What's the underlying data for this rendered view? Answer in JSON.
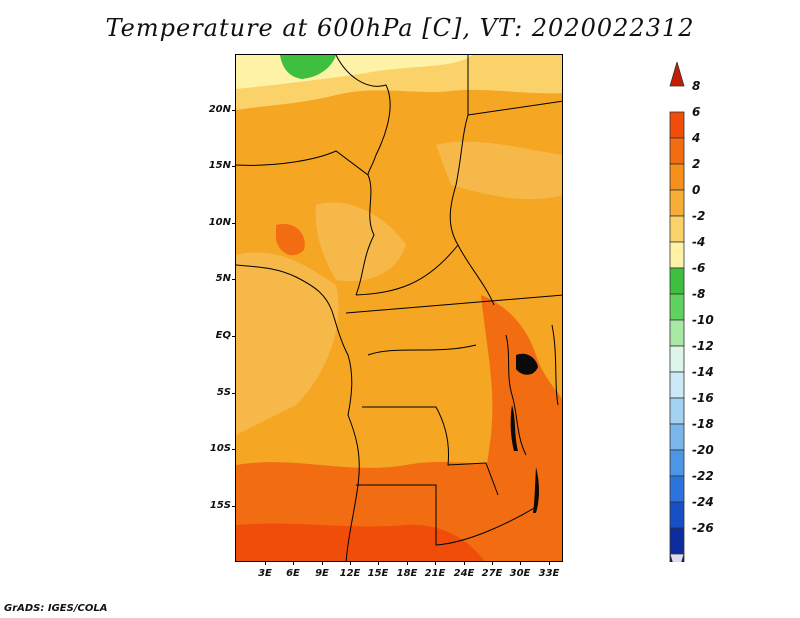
{
  "title": "Temperature at 600hPa [C], VT: 2020022312",
  "footer": "GrADS: IGES/COLA",
  "map": {
    "lon_range": [
      0,
      34.5
    ],
    "lat_range": [
      -20,
      25
    ],
    "lat_ticks": [
      {
        "label": "20N",
        "lat": 20
      },
      {
        "label": "15N",
        "lat": 15
      },
      {
        "label": "10N",
        "lat": 10
      },
      {
        "label": "5N",
        "lat": 5
      },
      {
        "label": "EQ",
        "lat": 0
      },
      {
        "label": "5S",
        "lat": -5
      },
      {
        "label": "10S",
        "lat": -10
      },
      {
        "label": "15S",
        "lat": -15
      }
    ],
    "lon_ticks": [
      {
        "label": "3E",
        "lon": 3
      },
      {
        "label": "6E",
        "lon": 6
      },
      {
        "label": "9E",
        "lon": 9
      },
      {
        "label": "12E",
        "lon": 12
      },
      {
        "label": "15E",
        "lon": 15
      },
      {
        "label": "18E",
        "lon": 18
      },
      {
        "label": "21E",
        "lon": 21
      },
      {
        "label": "24E",
        "lon": 24
      },
      {
        "label": "27E",
        "lon": 27
      },
      {
        "label": "30E",
        "lon": 30
      },
      {
        "label": "33E",
        "lon": 33
      }
    ]
  },
  "colorbar": {
    "labels": [
      "8",
      "6",
      "4",
      "2",
      "0",
      "-2",
      "-4",
      "-6",
      "-8",
      "-10",
      "-12",
      "-14",
      "-16",
      "-18",
      "-20",
      "-22",
      "-24",
      "-26"
    ],
    "colors": [
      "#d42a05",
      "#f14d0a",
      "#f26d12",
      "#f5901c",
      "#f7ad36",
      "#fbd26a",
      "#fdf2a6",
      "#3fbf3f",
      "#5fd35f",
      "#a6eaa6",
      "#def5ea",
      "#cde8f6",
      "#a3d2f2",
      "#7ab6ec",
      "#4d96e6",
      "#2b74de",
      "#1750c6",
      "#0d2d9e",
      "#08135e"
    ],
    "top_arrow_color": "#c41d05",
    "bottom_arrow_color": "#dcdcf2"
  }
}
